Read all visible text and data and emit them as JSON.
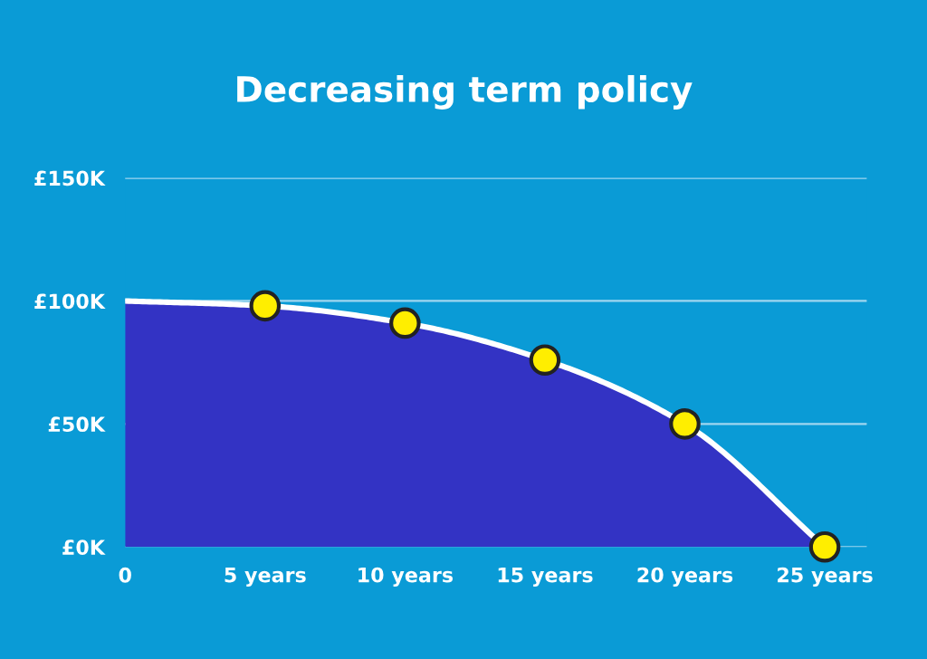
{
  "chart_data": {
    "type": "area",
    "title": "Decreasing term policy",
    "x": [
      0,
      5,
      10,
      15,
      20,
      25
    ],
    "series": [
      {
        "color": "#3333c4",
        "marker": "none",
        "values": [
          100,
          98,
          91,
          76,
          50,
          0
        ]
      },
      {
        "type": "scatter",
        "marker": "circle",
        "x": [
          5,
          10,
          15,
          20,
          25
        ],
        "color": "#ffee00",
        "values": [
          98,
          91,
          76,
          50,
          0
        ]
      }
    ],
    "xlim": [
      0,
      26.5
    ],
    "xticks": [
      0,
      {
        "value": 5,
        "label": "5 years"
      },
      {
        "value": 10,
        "label": "10 years"
      },
      {
        "value": 15,
        "label": "15 years"
      },
      {
        "value": 20,
        "label": "20 years"
      },
      {
        "value": 25,
        "label": "25 years"
      }
    ],
    "ylim": [
      0,
      150
    ],
    "yticks": [
      {
        "value": 0,
        "label": "£0K"
      },
      {
        "value": 50,
        "label": "£50K"
      },
      {
        "value": 100,
        "label": "£100K"
      },
      {
        "value": 150,
        "label": "£150K"
      }
    ],
    "grid": "y"
  }
}
